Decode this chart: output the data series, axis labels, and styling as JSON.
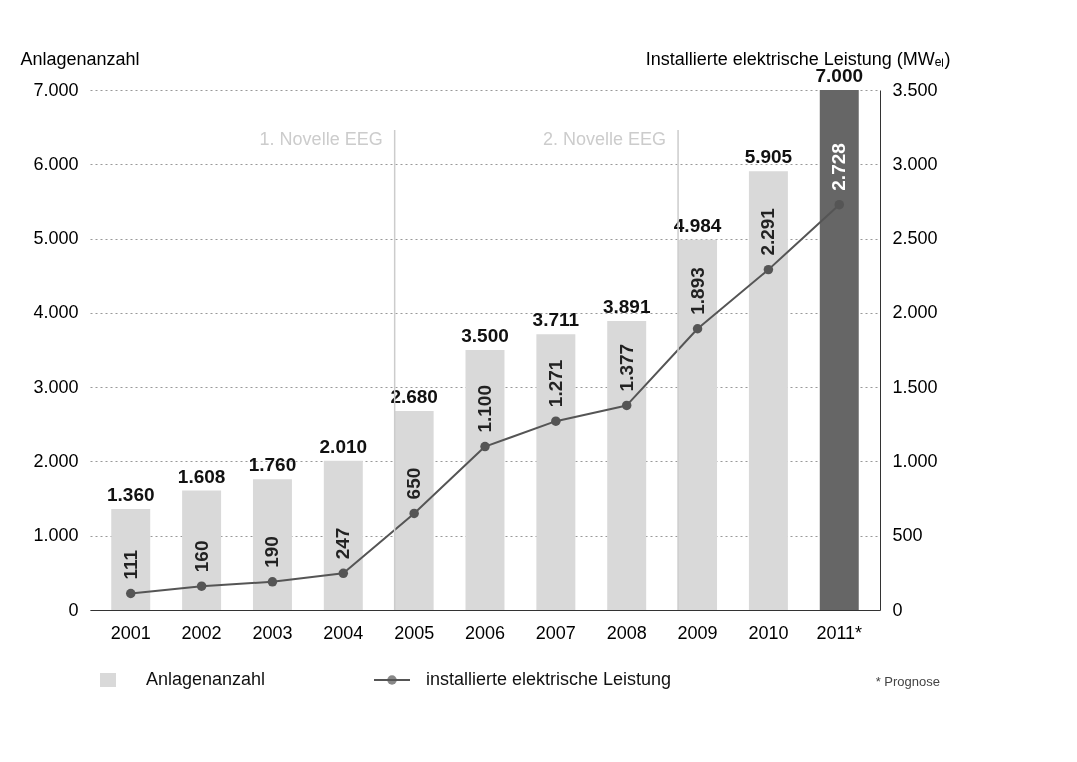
{
  "chart_data": {
    "type": "bar",
    "ylabel": "Anlagenanzahl",
    "y2label": "Installierte elektrische Leistung (MWₑₗ)",
    "categories": [
      "2001",
      "2002",
      "2003",
      "2004",
      "2005",
      "2006",
      "2007",
      "2008",
      "2009",
      "2010",
      "2011*"
    ],
    "series": [
      {
        "name": "Anlagenanzahl",
        "colors": [
          "#d9d9d9",
          "#d9d9d9",
          "#d9d9d9",
          "#d9d9d9",
          "#d9d9d9",
          "#d9d9d9",
          "#d9d9d9",
          "#d9d9d9",
          "#d9d9d9",
          "#d9d9d9",
          "#666666"
        ],
        "values": [
          1360,
          1608,
          1760,
          2010,
          2680,
          3500,
          3711,
          3891,
          4984,
          5905,
          7000
        ],
        "value_labels": [
          "1.360",
          "1.608",
          "1.760",
          "2.010",
          "2.680",
          "3.500",
          "3.711",
          "3.891",
          "4.984",
          "5.905",
          "7.000"
        ]
      },
      {
        "name": "installierte elektrische Leistung",
        "type": "line",
        "axis": "y2",
        "color": "#555555",
        "marker": "circle",
        "values": [
          111,
          160,
          190,
          247,
          650,
          1100,
          1271,
          1377,
          1893,
          2291,
          2728
        ],
        "value_labels": [
          "111",
          "160",
          "190",
          "247",
          "650",
          "1.100",
          "1.271",
          "1.377",
          "1.893",
          "2.291",
          "2.728"
        ]
      }
    ],
    "ylim": [
      0,
      7000
    ],
    "yticks": [
      {
        "value": 0,
        "label": "0"
      },
      {
        "value": 1000,
        "label": "1.000"
      },
      {
        "value": 2000,
        "label": "2.000"
      },
      {
        "value": 3000,
        "label": "3.000"
      },
      {
        "value": 4000,
        "label": "4.000"
      },
      {
        "value": 5000,
        "label": "5.000"
      },
      {
        "value": 6000,
        "label": "6.000"
      },
      {
        "value": 7000,
        "label": "7.000"
      }
    ],
    "y2lim": [
      0,
      3500
    ],
    "y2ticks": [
      {
        "value": 0,
        "label": "0"
      },
      {
        "value": 500,
        "label": "500"
      },
      {
        "value": 1000,
        "label": "1.000"
      },
      {
        "value": 1500,
        "label": "1.500"
      },
      {
        "value": 2000,
        "label": "2.000"
      },
      {
        "value": 2500,
        "label": "2.500"
      },
      {
        "value": 3000,
        "label": "3.000"
      },
      {
        "value": 3500,
        "label": "3.500"
      }
    ],
    "ref_lines": [
      {
        "axis": "x",
        "value": "2005",
        "label": "1. Novelle EEG",
        "color": "#cccccc"
      },
      {
        "axis": "x",
        "value": "2009",
        "label": "2. Novelle EEG",
        "color": "#cccccc"
      }
    ],
    "grid": "y",
    "legend": "bottom left",
    "annotations": [
      "* Prognose"
    ]
  }
}
